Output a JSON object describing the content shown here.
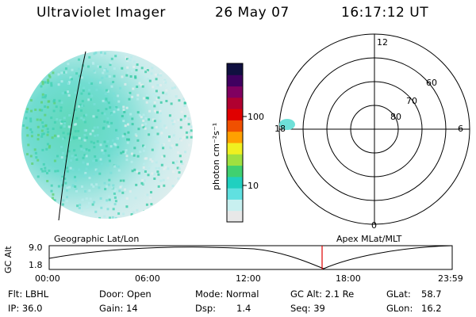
{
  "header": {
    "instrument": "Ultraviolet Imager",
    "date": "26 May 07",
    "time": "16:17:12 UT"
  },
  "colorbar": {
    "unit_label": "photon cm⁻²s⁻¹",
    "ticks": [
      "100",
      "10"
    ],
    "colors": [
      "#e8e8e8",
      "#c8f0f0",
      "#60e0e0",
      "#20d0c0",
      "#40d070",
      "#a0e040",
      "#f0f020",
      "#ffa000",
      "#f05000",
      "#e00000",
      "#b00030",
      "#800060",
      "#400060",
      "#101040"
    ]
  },
  "polar_plot": {
    "mlt_labels": {
      "top": "12",
      "left": "18",
      "right": "6",
      "bottom": "0"
    },
    "lat_labels": [
      "60",
      "70",
      "80"
    ]
  },
  "map_labels": {
    "left": "Geographic Lat/Lon",
    "right": "Apex MLat/MLT"
  },
  "altitude_plot": {
    "ylabel": "GC Alt",
    "ymax": "9.0",
    "ymin": "1.8",
    "time_ticks": [
      "00:00",
      "06:00",
      "12:00",
      "18:00",
      "23:59"
    ]
  },
  "info": {
    "row1": {
      "filter": "Flt: LBHL",
      "door": "Door: Open",
      "mode": "Mode: Normal",
      "gcalt": "GC Alt: 2.1 Re",
      "glat_label": "GLat:",
      "glat_value": "58.7"
    },
    "row2": {
      "ip": "IP: 36.0",
      "gain": "Gain: 14",
      "dsp_label": "Dsp:",
      "dsp_value": "1.4",
      "seq": "Seq: 39",
      "glon_label": "GLon:",
      "glon_value": "16.2"
    }
  }
}
